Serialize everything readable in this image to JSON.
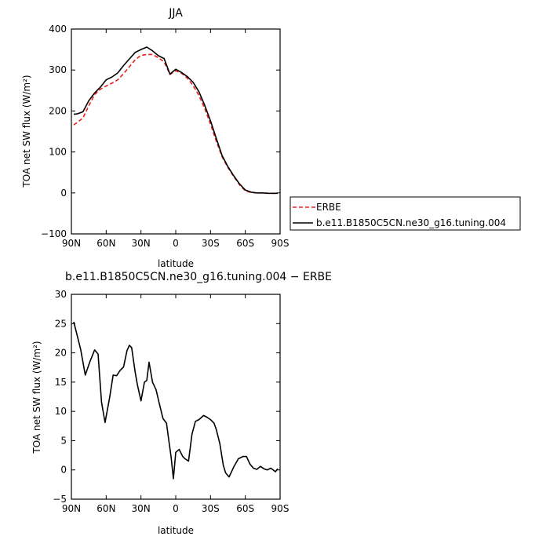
{
  "chart_data": [
    {
      "type": "line",
      "title": "JJA",
      "xlabel": "latitude",
      "ylabel": "TOA net SW flux (W/m²)",
      "x_tick_labels": [
        "90N",
        "60N",
        "30N",
        "0",
        "30S",
        "60S",
        "90S"
      ],
      "x_tick_values": [
        90,
        60,
        30,
        0,
        -30,
        -60,
        -90
      ],
      "xlim": [
        90,
        -90
      ],
      "y_tick_values": [
        -100,
        0,
        100,
        200,
        300,
        400
      ],
      "ylim": [
        -100,
        400
      ],
      "grid": false,
      "legend_placement": "right, outside plot",
      "series": [
        {
          "name": "ERBE",
          "color": "#e8201c",
          "dashed": true,
          "x": [
            88,
            85,
            80,
            75,
            70,
            65,
            60,
            55,
            50,
            45,
            40,
            35,
            30,
            25,
            20,
            15,
            10,
            5,
            0,
            -5,
            -10,
            -15,
            -20,
            -25,
            -30,
            -35,
            -40,
            -45,
            -50,
            -55,
            -60,
            -65,
            -70,
            -75,
            -80,
            -85,
            -88
          ],
          "values": [
            166,
            172,
            183,
            213,
            240,
            253,
            261,
            268,
            276,
            291,
            308,
            325,
            336,
            338,
            338,
            330,
            320,
            289,
            298,
            292,
            280,
            262,
            238,
            206,
            168,
            126,
            88,
            62,
            40,
            20,
            5,
            1,
            0,
            0,
            -1,
            -1,
            -1
          ]
        },
        {
          "name": "b.e11.B1850C5CN.ne30_g16.tuning.004",
          "color": "#000000",
          "dashed": false,
          "x": [
            88,
            85,
            80,
            75,
            70,
            65,
            60,
            55,
            50,
            45,
            40,
            35,
            30,
            25,
            20,
            15,
            10,
            5,
            0,
            -5,
            -10,
            -15,
            -20,
            -25,
            -30,
            -35,
            -40,
            -45,
            -50,
            -55,
            -60,
            -65,
            -70,
            -75,
            -80,
            -85,
            -88
          ],
          "values": [
            192,
            193,
            198,
            225,
            244,
            258,
            276,
            283,
            293,
            311,
            327,
            343,
            350,
            356,
            347,
            335,
            328,
            290,
            302,
            294,
            284,
            270,
            247,
            214,
            176,
            133,
            91,
            64,
            42,
            22,
            7,
            2,
            0,
            0,
            -1,
            -1,
            -1
          ]
        }
      ]
    },
    {
      "type": "line",
      "title": "b.e11.B1850C5CN.ne30_g16.tuning.004 − ERBE",
      "xlabel": "latitude",
      "ylabel": "TOA net SW flux (W/m²)",
      "x_tick_labels": [
        "90N",
        "60N",
        "30N",
        "0",
        "30S",
        "60S",
        "90S"
      ],
      "x_tick_values": [
        90,
        60,
        30,
        0,
        -30,
        -60,
        -90
      ],
      "xlim": [
        90,
        -90
      ],
      "y_tick_values": [
        -5,
        0,
        5,
        10,
        15,
        20,
        25,
        30
      ],
      "ylim": [
        -5,
        30
      ],
      "grid": false,
      "series": [
        {
          "color": "#000000",
          "dashed": false,
          "x": [
            88,
            82,
            78,
            74,
            70,
            67,
            64,
            61,
            57,
            54,
            51,
            48,
            45,
            42,
            40,
            38,
            35,
            33,
            30,
            27,
            25,
            23,
            20,
            17,
            14,
            11,
            8,
            6,
            4,
            2,
            0,
            -3,
            -6,
            -8,
            -11,
            -14,
            -17,
            -20,
            -24,
            -27,
            -30,
            -33,
            -35,
            -38,
            -41,
            -43,
            -46,
            -50,
            -54,
            -58,
            -61,
            -64,
            -67,
            -70,
            -73,
            -76,
            -79,
            -82,
            -86,
            -88
          ],
          "values": [
            25.3,
            20.6,
            16.2,
            18.5,
            20.5,
            19.8,
            11.6,
            8.1,
            12.4,
            16.2,
            16.1,
            17.0,
            17.6,
            20.4,
            21.3,
            20.9,
            16.7,
            14.5,
            11.8,
            15.0,
            15.3,
            18.4,
            15.0,
            13.7,
            11.2,
            8.8,
            8.0,
            5.1,
            2.2,
            -1.5,
            3.0,
            3.5,
            2.3,
            1.9,
            1.5,
            6.1,
            8.3,
            8.6,
            9.3,
            9.0,
            8.6,
            8.0,
            6.9,
            4.5,
            0.8,
            -0.5,
            -1.2,
            0.5,
            1.9,
            2.3,
            2.3,
            1.0,
            0.3,
            0.1,
            0.6,
            0.2,
            0.0,
            0.3,
            -0.3,
            0.2
          ]
        }
      ]
    }
  ]
}
